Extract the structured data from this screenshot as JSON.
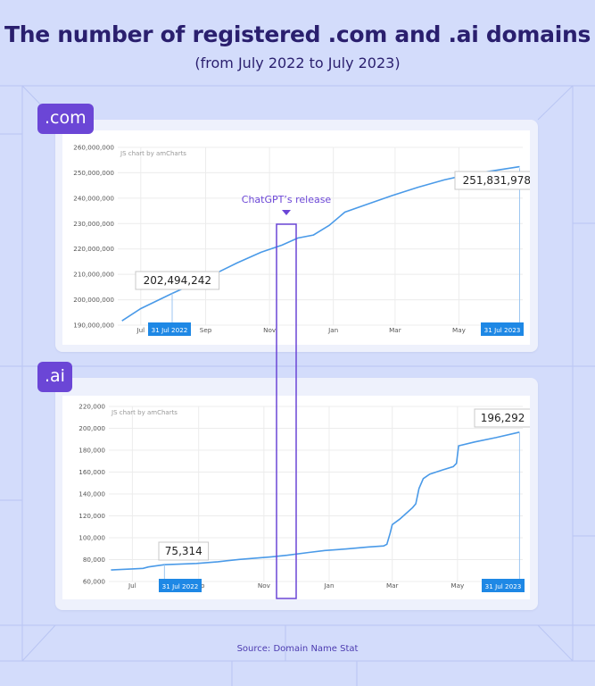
{
  "title": "The number of registered .com and .ai domains",
  "subtitle": "(from July 2022 to July 2023)",
  "source": "Source: Domain Name Stat",
  "annotation": "ChatGPT’s release",
  "colors": {
    "line": "#4a9ae8",
    "accent": "#6b46d6",
    "title": "#2a1f6e",
    "background": "#d3dcfb",
    "marker": "#1e88e5"
  },
  "chart_data": [
    {
      "type": "line",
      "label": ".com",
      "watermark": "JS chart by amCharts",
      "ylim": [
        190000000,
        260000000
      ],
      "y_ticks": [
        "190,000,000",
        "200,000,000",
        "210,000,000",
        "220,000,000",
        "230,000,000",
        "240,000,000",
        "250,000,000",
        "260,000,000"
      ],
      "y_tick_values": [
        190000000,
        200000000,
        210000000,
        220000000,
        230000000,
        240000000,
        250000000,
        260000000
      ],
      "x_ticks": [
        "Jul",
        "Sep",
        "Nov",
        "Jan",
        "Mar",
        "May"
      ],
      "x_tick_days": [
        0,
        62,
        123,
        184,
        243,
        304
      ],
      "x_range_days": [
        -22,
        365
      ],
      "start_label": "31 Jul 2022",
      "end_label": "31 Jul 2023",
      "start_value_label": "202,494,242",
      "end_value_label": "251,831,978",
      "start_value": 202494242,
      "end_value": 251831978,
      "points": [
        [
          -18,
          191700000
        ],
        [
          0,
          196500000
        ],
        [
          30,
          202494242
        ],
        [
          60,
          208000000
        ],
        [
          92,
          214500000
        ],
        [
          115,
          218700000
        ],
        [
          135,
          221500000
        ],
        [
          150,
          224300000
        ],
        [
          165,
          225500000
        ],
        [
          180,
          229300000
        ],
        [
          195,
          234500000
        ],
        [
          215,
          237400000
        ],
        [
          240,
          241000000
        ],
        [
          265,
          244300000
        ],
        [
          290,
          247200000
        ],
        [
          305,
          248600000
        ],
        [
          320,
          249800000
        ],
        [
          340,
          251000000
        ],
        [
          362,
          252400000
        ]
      ]
    },
    {
      "type": "line",
      "label": ".ai",
      "watermark": "JS chart by amCharts",
      "ylim": [
        60000,
        220000
      ],
      "y_ticks": [
        "60,000",
        "80,000",
        "100,000",
        "120,000",
        "140,000",
        "160,000",
        "180,000",
        "200,000",
        "220,000"
      ],
      "y_tick_values": [
        60000,
        80000,
        100000,
        120000,
        140000,
        160000,
        180000,
        200000,
        220000
      ],
      "x_ticks": [
        "Jul",
        "Sep",
        "Nov",
        "Jan",
        "Mar",
        "May"
      ],
      "x_tick_days": [
        0,
        62,
        123,
        184,
        243,
        304
      ],
      "x_range_days": [
        -22,
        365
      ],
      "start_label": "31 Jul 2022",
      "end_label": "31 Jul 2023",
      "start_value_label": "75,314",
      "end_value_label": "196,292",
      "start_value": 75314,
      "end_value": 196292,
      "points": [
        [
          -20,
          70500
        ],
        [
          0,
          71500
        ],
        [
          10,
          72000
        ],
        [
          15,
          73300
        ],
        [
          30,
          75314
        ],
        [
          60,
          76500
        ],
        [
          80,
          78000
        ],
        [
          100,
          80200
        ],
        [
          130,
          82500
        ],
        [
          145,
          84000
        ],
        [
          165,
          86500
        ],
        [
          180,
          88300
        ],
        [
          200,
          89700
        ],
        [
          220,
          91500
        ],
        [
          235,
          92500
        ],
        [
          238,
          94000
        ],
        [
          241,
          104000
        ],
        [
          243,
          112000
        ],
        [
          250,
          117000
        ],
        [
          258,
          124000
        ],
        [
          262,
          127500
        ],
        [
          265,
          131000
        ],
        [
          268,
          145000
        ],
        [
          272,
          154000
        ],
        [
          278,
          158000
        ],
        [
          290,
          162000
        ],
        [
          300,
          165000
        ],
        [
          303,
          168000
        ],
        [
          305,
          184000
        ],
        [
          320,
          187500
        ],
        [
          340,
          191500
        ],
        [
          362,
          196500
        ]
      ]
    }
  ]
}
